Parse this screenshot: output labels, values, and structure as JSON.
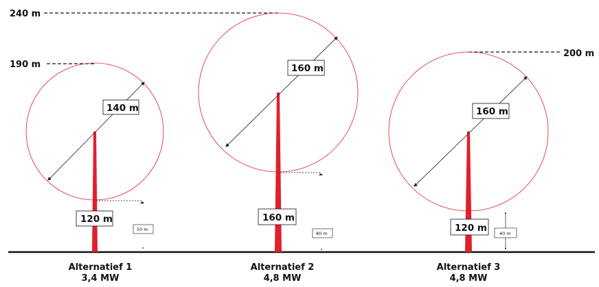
{
  "levels": {
    "top_240": "240 m",
    "top_190": "190 m",
    "top_200": "200 m"
  },
  "alternatives": [
    {
      "name": "Alternatief 1",
      "power": "3,4 MW",
      "rotor_diameter": "140 m",
      "hub_height": "120 m",
      "clearance": "50 m"
    },
    {
      "name": "Alternatief 2",
      "power": "4,8 MW",
      "rotor_diameter": "160 m",
      "hub_height": "160 m",
      "clearance": "80 m"
    },
    {
      "name": "Alternatief 3",
      "power": "4,8 MW",
      "rotor_diameter": "160 m",
      "hub_height": "120 m",
      "clearance": "40 m"
    }
  ],
  "colors": {
    "tower": "#e0202c",
    "rotor_circle": "#e0202c",
    "ground": "#111111",
    "dimension_line": "#333333"
  }
}
